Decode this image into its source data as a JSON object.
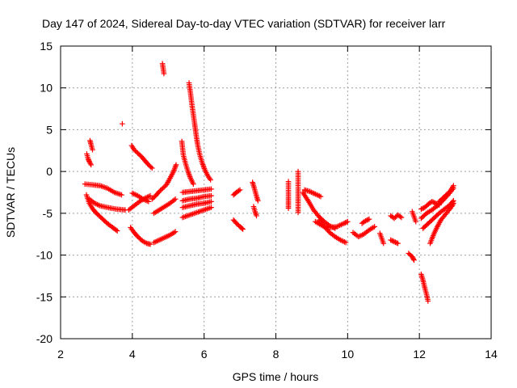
{
  "chart_data": {
    "type": "scatter",
    "title": "Day 147 of 2024, Sidereal Day-to-day VTEC variation (SDTVAR) for receiver larr",
    "xlabel": "GPS time / hours",
    "ylabel": "SDTVAR / TECUs",
    "xlim": [
      2,
      14
    ],
    "ylim": [
      -20,
      15
    ],
    "xticks": [
      2,
      4,
      6,
      8,
      10,
      12,
      14
    ],
    "yticks": [
      -20,
      -15,
      -10,
      -5,
      0,
      5,
      10,
      15
    ],
    "grid": true,
    "marker": "+",
    "color": "#ff0000",
    "segments": [
      [
        [
          2.73,
          2.1
        ],
        [
          2.77,
          1.5
        ],
        [
          2.81,
          1.1
        ],
        [
          2.85,
          0.8
        ]
      ],
      [
        [
          2.82,
          3.7
        ],
        [
          2.85,
          3.2
        ],
        [
          2.89,
          2.6
        ]
      ],
      [
        [
          3.72,
          5.7
        ]
      ],
      [
        [
          2.68,
          -1.5
        ],
        [
          2.9,
          -1.6
        ],
        [
          3.1,
          -1.7
        ],
        [
          3.3,
          -2.0
        ],
        [
          3.5,
          -2.5
        ],
        [
          3.7,
          -2.8
        ]
      ],
      [
        [
          2.72,
          -2.8
        ],
        [
          2.8,
          -3.8
        ],
        [
          2.9,
          -4.5
        ],
        [
          3.0,
          -5.0
        ],
        [
          3.15,
          -5.6
        ],
        [
          3.3,
          -6.2
        ],
        [
          3.45,
          -6.7
        ],
        [
          3.58,
          -7.1
        ]
      ],
      [
        [
          2.8,
          -3.3
        ],
        [
          2.95,
          -3.8
        ],
        [
          3.1,
          -4.1
        ],
        [
          3.3,
          -4.3
        ],
        [
          3.55,
          -4.5
        ],
        [
          3.8,
          -4.6
        ]
      ],
      [
        [
          3.98,
          3.1
        ],
        [
          4.05,
          2.6
        ],
        [
          4.15,
          2.2
        ],
        [
          4.25,
          1.8
        ],
        [
          4.35,
          1.3
        ],
        [
          4.45,
          0.8
        ],
        [
          4.55,
          0.4
        ]
      ],
      [
        [
          4.0,
          -2.6
        ],
        [
          4.15,
          -2.9
        ],
        [
          4.3,
          -3.3
        ],
        [
          4.45,
          -3.6
        ]
      ],
      [
        [
          3.95,
          -6.7
        ],
        [
          4.05,
          -7.3
        ],
        [
          4.15,
          -7.8
        ],
        [
          4.28,
          -8.3
        ],
        [
          4.4,
          -8.6
        ],
        [
          4.5,
          -8.7
        ]
      ],
      [
        [
          3.9,
          -4.6
        ],
        [
          4.05,
          -4.1
        ],
        [
          4.2,
          -3.6
        ],
        [
          4.35,
          -3.2
        ],
        [
          4.5,
          -2.9
        ]
      ],
      [
        [
          4.6,
          -8.5
        ],
        [
          4.75,
          -8.2
        ],
        [
          4.9,
          -7.9
        ],
        [
          5.05,
          -7.6
        ],
        [
          5.2,
          -7.2
        ]
      ],
      [
        [
          4.55,
          -3.3
        ],
        [
          4.65,
          -2.9
        ],
        [
          4.75,
          -2.4
        ],
        [
          4.85,
          -2.0
        ],
        [
          4.95,
          -1.6
        ],
        [
          5.05,
          -0.8
        ],
        [
          5.15,
          0.0
        ],
        [
          5.22,
          0.8
        ]
      ],
      [
        [
          4.6,
          -5.0
        ],
        [
          4.75,
          -4.6
        ],
        [
          4.9,
          -4.2
        ],
        [
          5.05,
          -3.8
        ],
        [
          5.2,
          -3.3
        ]
      ],
      [
        [
          4.84,
          12.9
        ],
        [
          4.86,
          12.3
        ],
        [
          4.88,
          11.7
        ]
      ],
      [
        [
          5.58,
          10.6
        ],
        [
          5.62,
          9.4
        ],
        [
          5.66,
          8.0
        ],
        [
          5.7,
          6.8
        ],
        [
          5.74,
          5.6
        ],
        [
          5.78,
          4.3
        ],
        [
          5.82,
          3.2
        ],
        [
          5.88,
          2.0
        ],
        [
          5.95,
          1.0
        ],
        [
          6.02,
          0.2
        ],
        [
          6.1,
          -0.5
        ],
        [
          6.18,
          -1.0
        ]
      ],
      [
        [
          5.38,
          3.6
        ],
        [
          5.42,
          2.0
        ],
        [
          5.48,
          1.0
        ],
        [
          5.55,
          0.0
        ],
        [
          5.62,
          -0.8
        ],
        [
          5.7,
          -1.5
        ]
      ],
      [
        [
          5.4,
          -2.5
        ],
        [
          5.6,
          -2.4
        ],
        [
          5.8,
          -2.3
        ],
        [
          6.0,
          -2.2
        ],
        [
          6.2,
          -2.1
        ]
      ],
      [
        [
          5.4,
          -3.5
        ],
        [
          5.6,
          -3.3
        ],
        [
          5.8,
          -3.2
        ],
        [
          6.0,
          -3.0
        ],
        [
          6.2,
          -2.9
        ]
      ],
      [
        [
          5.4,
          -4.3
        ],
        [
          5.6,
          -4.1
        ],
        [
          5.8,
          -3.9
        ],
        [
          6.0,
          -3.8
        ],
        [
          6.2,
          -3.6
        ]
      ],
      [
        [
          5.4,
          -5.5
        ],
        [
          5.6,
          -5.2
        ],
        [
          5.8,
          -4.9
        ],
        [
          6.0,
          -4.6
        ],
        [
          6.2,
          -4.3
        ]
      ],
      [
        [
          6.82,
          -2.8
        ],
        [
          6.9,
          -2.5
        ],
        [
          7.0,
          -2.2
        ]
      ],
      [
        [
          6.82,
          -5.8
        ],
        [
          6.9,
          -6.2
        ],
        [
          7.0,
          -6.6
        ],
        [
          7.08,
          -6.9
        ]
      ],
      [
        [
          7.35,
          -1.3
        ],
        [
          7.4,
          -2.0
        ],
        [
          7.45,
          -2.8
        ],
        [
          7.5,
          -3.5
        ]
      ],
      [
        [
          7.38,
          -4.2
        ],
        [
          7.42,
          -4.8
        ],
        [
          7.46,
          -5.3
        ]
      ],
      [
        [
          8.35,
          -1.2
        ],
        [
          8.35,
          -3.1
        ],
        [
          8.35,
          -4.4
        ]
      ],
      [
        [
          8.62,
          0.0
        ],
        [
          8.62,
          -2.1
        ],
        [
          8.62,
          -4.9
        ]
      ],
      [
        [
          8.8,
          -2.2
        ],
        [
          8.95,
          -2.4
        ],
        [
          9.1,
          -2.7
        ],
        [
          9.25,
          -3.0
        ]
      ],
      [
        [
          8.75,
          -2.5
        ],
        [
          8.9,
          -3.5
        ],
        [
          9.05,
          -4.6
        ],
        [
          9.2,
          -5.4
        ],
        [
          9.35,
          -6.0
        ],
        [
          9.5,
          -6.5
        ],
        [
          9.65,
          -6.8
        ]
      ],
      [
        [
          9.2,
          -5.8
        ],
        [
          9.35,
          -6.6
        ],
        [
          9.5,
          -7.3
        ],
        [
          9.65,
          -7.8
        ],
        [
          9.8,
          -8.2
        ],
        [
          9.95,
          -8.5
        ]
      ],
      [
        [
          9.1,
          -6.0
        ],
        [
          9.3,
          -6.5
        ],
        [
          9.5,
          -6.7
        ],
        [
          9.7,
          -6.6
        ],
        [
          9.9,
          -6.2
        ],
        [
          10.0,
          -6.0
        ]
      ],
      [
        [
          10.15,
          -7.3
        ],
        [
          10.3,
          -7.8
        ],
        [
          10.45,
          -7.5
        ],
        [
          10.6,
          -7.0
        ],
        [
          10.75,
          -6.6
        ]
      ],
      [
        [
          10.4,
          -6.2
        ],
        [
          10.5,
          -5.9
        ],
        [
          10.6,
          -5.7
        ]
      ],
      [
        [
          10.9,
          -7.4
        ],
        [
          10.95,
          -8.0
        ],
        [
          11.0,
          -8.6
        ]
      ],
      [
        [
          11.2,
          -8.2
        ],
        [
          11.3,
          -8.4
        ],
        [
          11.4,
          -8.6
        ]
      ],
      [
        [
          11.2,
          -5.3
        ],
        [
          11.3,
          -5.6
        ],
        [
          11.4,
          -5.2
        ],
        [
          11.5,
          -5.5
        ]
      ],
      [
        [
          11.7,
          -9.8
        ],
        [
          11.8,
          -10.2
        ],
        [
          11.85,
          -10.6
        ]
      ],
      [
        [
          11.8,
          -4.8
        ],
        [
          11.85,
          -5.4
        ],
        [
          11.9,
          -6.0
        ]
      ],
      [
        [
          12.05,
          -12.3
        ],
        [
          12.1,
          -13.0
        ],
        [
          12.15,
          -13.9
        ],
        [
          12.2,
          -14.7
        ],
        [
          12.24,
          -15.5
        ]
      ],
      [
        [
          12.05,
          -4.5
        ],
        [
          12.15,
          -4.3
        ],
        [
          12.25,
          -3.9
        ],
        [
          12.35,
          -3.6
        ],
        [
          12.45,
          -3.8
        ],
        [
          12.55,
          -4.0
        ]
      ],
      [
        [
          12.05,
          -5.6
        ],
        [
          12.2,
          -5.0
        ],
        [
          12.35,
          -4.6
        ],
        [
          12.5,
          -4.1
        ],
        [
          12.65,
          -3.5
        ],
        [
          12.8,
          -2.8
        ],
        [
          12.95,
          -2.0
        ]
      ],
      [
        [
          12.1,
          -6.8
        ],
        [
          12.25,
          -6.2
        ],
        [
          12.4,
          -5.6
        ],
        [
          12.55,
          -5.0
        ],
        [
          12.7,
          -4.5
        ],
        [
          12.85,
          -4.0
        ],
        [
          12.95,
          -3.5
        ]
      ],
      [
        [
          12.3,
          -8.6
        ],
        [
          12.4,
          -7.5
        ],
        [
          12.5,
          -6.6
        ],
        [
          12.6,
          -5.8
        ],
        [
          12.75,
          -5.0
        ],
        [
          12.9,
          -4.2
        ],
        [
          12.95,
          -3.8
        ]
      ],
      [
        [
          12.55,
          -3.6
        ],
        [
          12.7,
          -3.0
        ],
        [
          12.85,
          -2.4
        ],
        [
          12.95,
          -1.7
        ]
      ]
    ]
  }
}
